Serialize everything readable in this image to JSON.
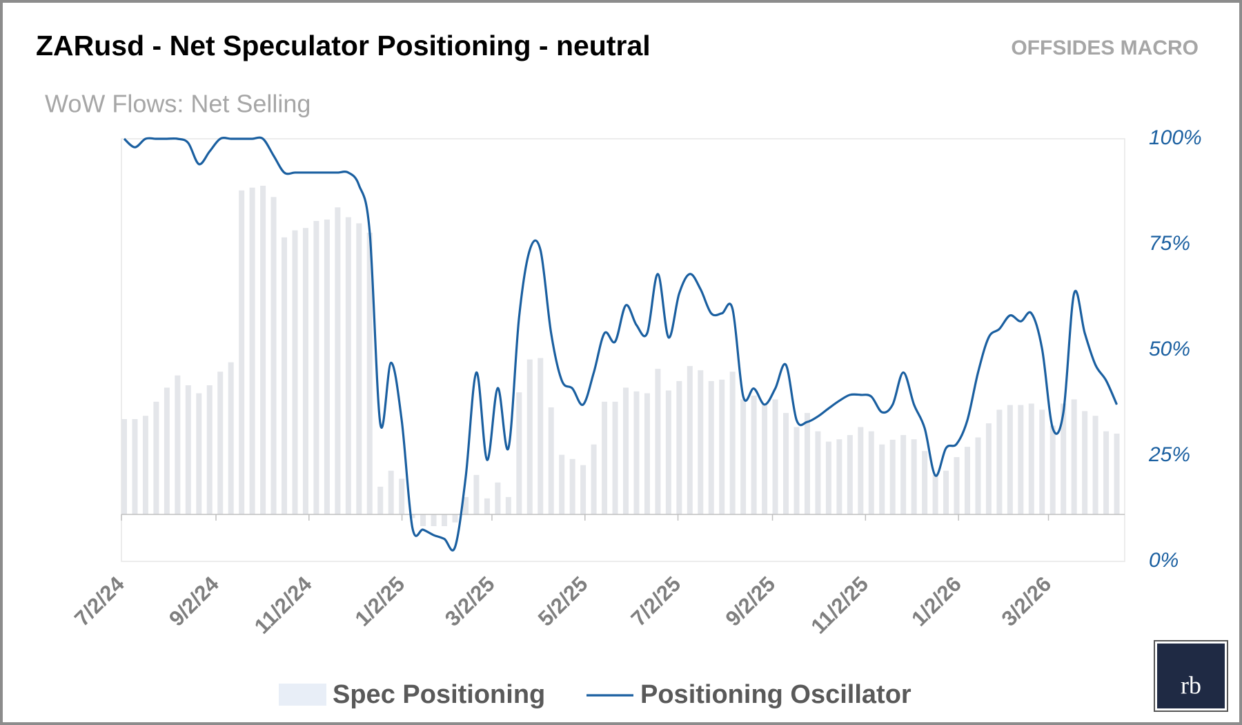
{
  "chart_data": {
    "type": "bar_line",
    "title": "ZARusd - Net Speculator Positioning - neutral",
    "subtitle": "WoW Flows: Net Selling",
    "brand": "OFFSIDES MACRO",
    "logo": "rb",
    "x": [
      "7/2/24",
      "7/9/24",
      "7/16/24",
      "7/23/24",
      "7/30/24",
      "8/6/24",
      "8/13/24",
      "8/20/24",
      "8/27/24",
      "9/3/24",
      "9/10/24",
      "9/17/24",
      "9/24/24",
      "10/1/24",
      "10/8/24",
      "10/15/24",
      "10/22/24",
      "10/29/24",
      "11/5/24",
      "11/12/24",
      "11/19/24",
      "11/26/24",
      "12/3/24",
      "12/10/24",
      "12/17/24",
      "12/24/24",
      "12/31/24",
      "1/7/25",
      "1/14/25",
      "1/21/25",
      "1/28/25",
      "2/4/25",
      "2/11/25",
      "2/18/25",
      "2/25/25",
      "3/4/25",
      "3/11/25",
      "3/18/25",
      "3/25/25",
      "4/1/25",
      "4/8/25",
      "4/15/25",
      "4/22/25",
      "4/29/25",
      "5/6/25",
      "5/13/25",
      "5/20/25",
      "5/27/25",
      "6/3/25",
      "6/10/25",
      "6/17/25",
      "6/24/25",
      "7/1/25",
      "7/8/25",
      "7/15/25",
      "7/22/25",
      "7/29/25",
      "8/5/25",
      "8/12/25",
      "8/19/25",
      "8/26/25",
      "9/2/25",
      "9/9/25",
      "9/16/25",
      "9/23/25",
      "9/30/25",
      "10/7/25",
      "10/14/25",
      "10/21/25",
      "10/28/25",
      "11/4/25",
      "11/11/25",
      "11/18/25",
      "11/25/25",
      "12/2/25",
      "12/9/25",
      "12/16/25",
      "12/23/25",
      "12/30/25",
      "1/6/26",
      "1/13/26",
      "1/20/26",
      "1/27/26",
      "2/3/26",
      "2/10/26",
      "2/17/26",
      "2/24/26",
      "3/3/26",
      "3/10/26",
      "3/17/26",
      "3/24/26",
      "3/31/26",
      "4/7/26",
      "4/14/26"
    ],
    "xlim": [
      "7/2/24",
      "4/21/26"
    ],
    "xticks": [
      "7/2/24",
      "9/2/24",
      "11/2/24",
      "1/2/25",
      "3/2/25",
      "5/2/25",
      "7/2/25",
      "9/2/25",
      "11/2/25",
      "1/2/26",
      "3/2/26"
    ],
    "ylim": [
      -10,
      80
    ],
    "y2lim": [
      0,
      100
    ],
    "y2ticks": [
      {
        "value": 0,
        "label": "0%"
      },
      {
        "value": 25,
        "label": "25%"
      },
      {
        "value": 50,
        "label": "50%"
      },
      {
        "value": 75,
        "label": "75%"
      },
      {
        "value": 100,
        "label": "100%"
      }
    ],
    "series": [
      {
        "name": "Spec Positioning",
        "type": "bar",
        "color": "#e4e6ea",
        "legend_color": "#e8eef7",
        "values": [
          20.3,
          20.3,
          21,
          24,
          27,
          29.6,
          27.5,
          25.8,
          27.5,
          30.4,
          32.4,
          69,
          69.6,
          70,
          67.6,
          59,
          60.5,
          61,
          62.5,
          62.8,
          65.4,
          63.3,
          62,
          60,
          5.9,
          9.3,
          7.6,
          -0.8,
          -2.5,
          -2.5,
          -2.5,
          -1.7,
          3.7,
          8.4,
          3.4,
          6.8,
          3.7,
          26,
          33,
          33.3,
          22.8,
          12.7,
          11.8,
          10.5,
          14.9,
          24,
          24,
          27,
          26.2,
          25.8,
          31,
          26.4,
          28.4,
          31.6,
          30.7,
          28.4,
          28.7,
          30.4,
          24.5,
          25.3,
          23.6,
          24.5,
          21.6,
          18.6,
          21.6,
          17.7,
          15.5,
          16,
          16.9,
          18.6,
          17.7,
          14.9,
          15.9,
          16.9,
          16,
          13.5,
          8.4,
          9.3,
          12.2,
          14.4,
          16.4,
          19.4,
          22.3,
          23.3,
          23.3,
          23.6,
          22.3,
          18.9,
          23.6,
          24.5,
          22,
          21,
          17.7,
          17.2
        ]
      },
      {
        "name": "Positioning Oscillator",
        "type": "line",
        "axis": "y2",
        "color": "#1a5fa0",
        "values": [
          100,
          98,
          100,
          100,
          100,
          100,
          99,
          94,
          97,
          100,
          100,
          100,
          100,
          100,
          96,
          92,
          92,
          92,
          92,
          92,
          92,
          92,
          89,
          78,
          32.5,
          47,
          33.4,
          8,
          7.5,
          6.2,
          5.3,
          3.4,
          20,
          44.7,
          24,
          41,
          26.8,
          57.8,
          73.7,
          73.7,
          54,
          42.8,
          40.9,
          37.1,
          44.7,
          54,
          52,
          60.6,
          55.9,
          54,
          68,
          53,
          63.4,
          68,
          64.4,
          58.7,
          58.7,
          59.7,
          39,
          40.9,
          37.1,
          40.9,
          46.5,
          33.4,
          33,
          34.3,
          36.2,
          38,
          39.4,
          39.4,
          39,
          35.3,
          37.1,
          44.7,
          37.1,
          31.5,
          20.3,
          26.8,
          27.8,
          33.4,
          44.7,
          53,
          55,
          58.2,
          56.8,
          58.7,
          50.3,
          31.5,
          35.3,
          63.4,
          54,
          46.5,
          42.8,
          37.1
        ]
      }
    ]
  }
}
